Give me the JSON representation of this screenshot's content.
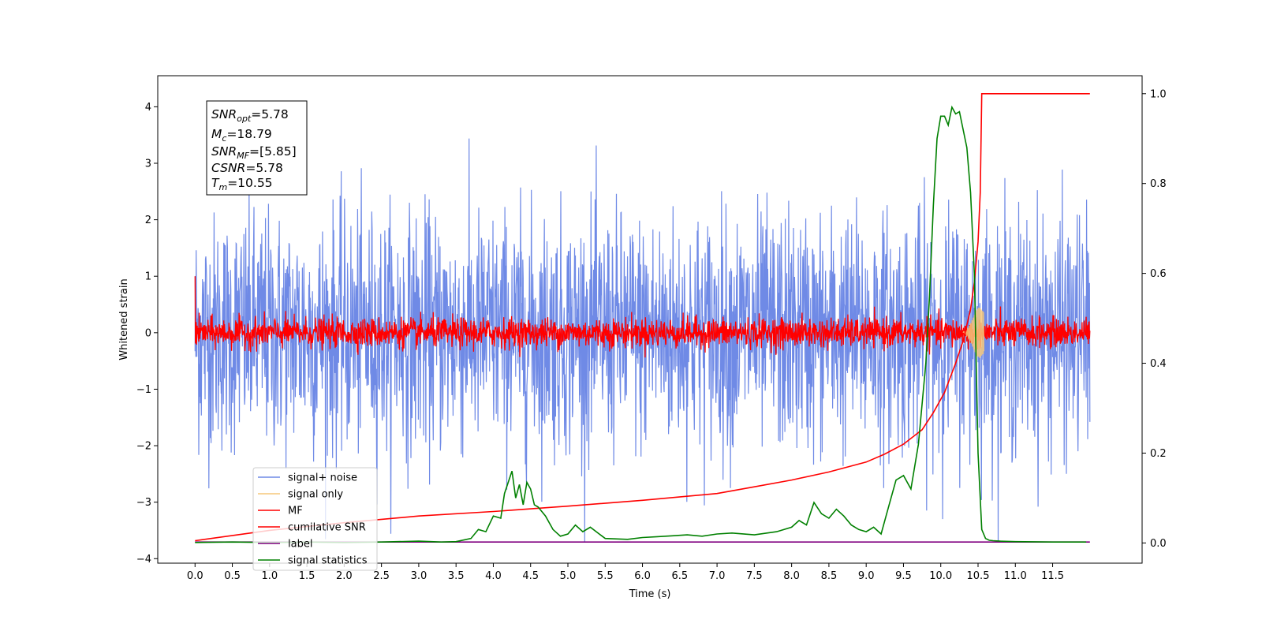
{
  "chart_data": {
    "type": "line",
    "xlabel": "Time (s)",
    "ylabel": "Whitened strain",
    "xlim": [
      -0.5,
      12.7
    ],
    "ylim": [
      -4.08,
      4.55
    ],
    "y2lim": [
      -0.045,
      1.04
    ],
    "x_ticks": [
      0.0,
      0.5,
      1.0,
      1.5,
      2.0,
      2.5,
      3.0,
      3.5,
      4.0,
      4.5,
      5.0,
      5.5,
      6.0,
      6.5,
      7.0,
      7.5,
      8.0,
      8.5,
      9.0,
      9.5,
      10.0,
      10.5,
      11.0,
      11.5
    ],
    "x_tick_labels": [
      "0.0",
      "0.5",
      "1.0",
      "1.5",
      "2.0",
      "2.5",
      "3.0",
      "3.5",
      "4.0",
      "4.5",
      "5.0",
      "5.5",
      "6.0",
      "6.5",
      "7.0",
      "7.5",
      "8.0",
      "8.5",
      "9.0",
      "9.5",
      "10.0",
      "10.5",
      "11.0",
      "11.5"
    ],
    "y_ticks": [
      -4,
      -3,
      -2,
      -1,
      0,
      1,
      2,
      3,
      4
    ],
    "y_tick_labels": [
      "−4",
      "−3",
      "−2",
      "−1",
      "0",
      "1",
      "2",
      "3",
      "4"
    ],
    "y2_ticks": [
      0.0,
      0.2,
      0.4,
      0.6,
      0.8,
      1.0
    ],
    "y2_tick_labels": [
      "0.0",
      "0.2",
      "0.4",
      "0.6",
      "0.8",
      "1.0"
    ],
    "grid": false,
    "legend_position": "lower-left",
    "legend": [
      {
        "name": "signal+ noise",
        "color": "#6f8ae6"
      },
      {
        "name": "signal only",
        "color": "#f5c77a"
      },
      {
        "name": "MF",
        "color": "#ff0000"
      },
      {
        "name": "cumilative SNR",
        "color": "#ff0000"
      },
      {
        "name": "label",
        "color": "#800080"
      },
      {
        "name": "signal statistics",
        "color": "#008000"
      }
    ],
    "annotation": {
      "snr_opt": {
        "base": "SNR",
        "sub": "opt",
        "rest": "=5.78"
      },
      "mc": {
        "base": "M",
        "sub": "c",
        "rest": "=18.79"
      },
      "snr_mf": {
        "base": "SNR",
        "sub": "MF",
        "rest": "=[5.85]"
      },
      "csnr": {
        "base": "CSNR",
        "rest": "=5.78"
      },
      "tm": {
        "base": "T",
        "sub": "m",
        "rest": "=10.55"
      }
    },
    "series": [
      {
        "name": "signal+ noise",
        "axis": "left",
        "color": "#6f8ae6",
        "description_range": [
          -3.7,
          4.2
        ],
        "x_range": [
          0.0,
          12.0
        ],
        "noise_std": 1.0
      },
      {
        "name": "signal only",
        "axis": "left",
        "color": "#f5c77a",
        "x_range": [
          10.3,
          10.58
        ],
        "peak_amplitude": 0.45,
        "peak_x": 10.52
      },
      {
        "name": "MF",
        "axis": "left",
        "color": "#ff0000",
        "x_range": [
          0.0,
          12.0
        ],
        "noise_std": 0.13
      },
      {
        "name": "cumilative SNR",
        "axis": "right",
        "color": "#ff0000",
        "x": [
          0.0,
          1.0,
          2.0,
          3.0,
          4.0,
          5.0,
          6.0,
          7.0,
          7.5,
          8.0,
          8.5,
          9.0,
          9.25,
          9.5,
          9.75,
          9.9,
          10.05,
          10.2,
          10.3,
          10.4,
          10.45,
          10.5,
          10.53,
          10.55,
          10.58,
          11.0,
          12.0
        ],
        "y": [
          0.005,
          0.028,
          0.045,
          0.06,
          0.07,
          0.082,
          0.095,
          0.11,
          0.125,
          0.14,
          0.158,
          0.18,
          0.198,
          0.22,
          0.252,
          0.29,
          0.335,
          0.4,
          0.45,
          0.52,
          0.58,
          0.67,
          0.78,
          1.0,
          1.0,
          1.0,
          1.0
        ]
      },
      {
        "name": "label",
        "axis": "right",
        "color": "#800080",
        "x": [
          0.0,
          12.0
        ],
        "y": [
          0.002,
          0.002
        ]
      },
      {
        "name": "signal statistics",
        "axis": "right",
        "color": "#008000",
        "x": [
          0.0,
          0.5,
          1.0,
          1.5,
          2.0,
          2.5,
          3.0,
          3.3,
          3.5,
          3.7,
          3.8,
          3.9,
          4.0,
          4.1,
          4.15,
          4.25,
          4.3,
          4.35,
          4.4,
          4.45,
          4.5,
          4.55,
          4.6,
          4.7,
          4.8,
          4.9,
          5.0,
          5.1,
          5.2,
          5.3,
          5.5,
          5.8,
          6.0,
          6.2,
          6.4,
          6.6,
          6.8,
          7.0,
          7.2,
          7.5,
          7.8,
          8.0,
          8.1,
          8.2,
          8.3,
          8.4,
          8.5,
          8.6,
          8.7,
          8.8,
          8.9,
          9.0,
          9.1,
          9.2,
          9.3,
          9.4,
          9.5,
          9.6,
          9.7,
          9.8,
          9.85,
          9.9,
          9.95,
          10.0,
          10.05,
          10.1,
          10.15,
          10.2,
          10.25,
          10.3,
          10.35,
          10.4,
          10.45,
          10.5,
          10.55,
          10.6,
          10.65,
          10.7,
          10.8,
          11.0,
          11.5,
          11.95
        ],
        "y": [
          0.001,
          0.002,
          0.001,
          0.002,
          0.001,
          0.002,
          0.004,
          0.002,
          0.003,
          0.01,
          0.03,
          0.025,
          0.06,
          0.055,
          0.11,
          0.16,
          0.1,
          0.13,
          0.085,
          0.135,
          0.12,
          0.085,
          0.08,
          0.06,
          0.03,
          0.015,
          0.02,
          0.04,
          0.025,
          0.035,
          0.01,
          0.008,
          0.012,
          0.014,
          0.016,
          0.018,
          0.015,
          0.02,
          0.022,
          0.018,
          0.025,
          0.035,
          0.05,
          0.04,
          0.09,
          0.065,
          0.055,
          0.075,
          0.06,
          0.04,
          0.03,
          0.025,
          0.035,
          0.02,
          0.08,
          0.14,
          0.15,
          0.12,
          0.22,
          0.4,
          0.55,
          0.75,
          0.9,
          0.95,
          0.95,
          0.93,
          0.97,
          0.955,
          0.96,
          0.92,
          0.88,
          0.78,
          0.6,
          0.2,
          0.03,
          0.01,
          0.006,
          0.005,
          0.004,
          0.003,
          0.002,
          0.002
        ]
      }
    ]
  }
}
